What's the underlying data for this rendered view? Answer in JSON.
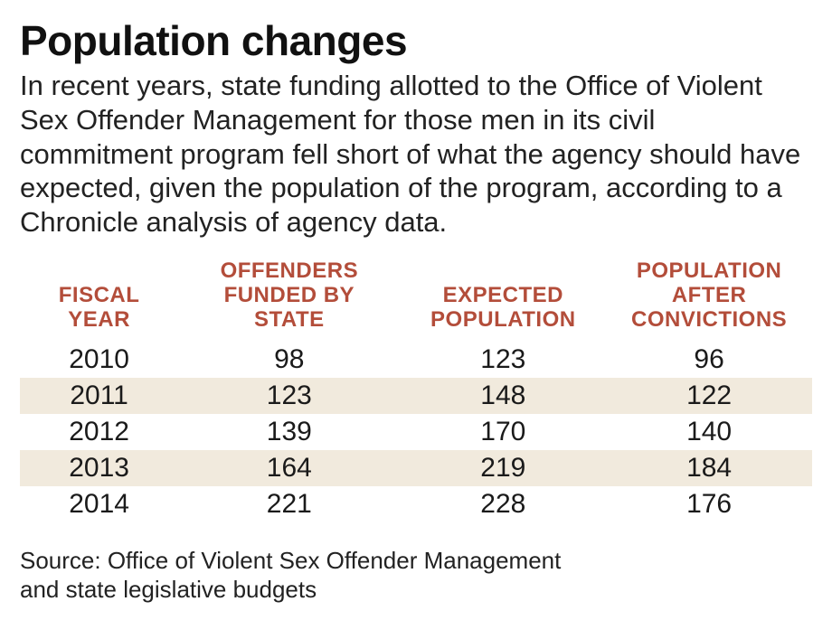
{
  "title": "Population changes",
  "intro": "In recent years, state funding allotted to the Office of Violent Sex Offender Management for those men in its civil commitment program fell short of what the agency should have expected, given the population of the program, according to a Chronicle analysis of agency data.",
  "table": {
    "type": "table",
    "header_color": "#b34d3a",
    "stripe_color": "#f1eadd",
    "background_color": "#ffffff",
    "header_fontsize": 24,
    "cell_fontsize": 30,
    "columns": [
      {
        "label_line1": "FISCAL",
        "label_line2": "YEAR",
        "width_pct": 20
      },
      {
        "label_line1": "OFFENDERS",
        "label_line2": "FUNDED BY",
        "label_line3": "STATE",
        "width_pct": 28
      },
      {
        "label_line1": "EXPECTED",
        "label_line2": "POPULATION",
        "width_pct": 26
      },
      {
        "label_line1": "POPULATION",
        "label_line2": "AFTER",
        "label_line3": "CONVICTIONS",
        "width_pct": 26
      }
    ],
    "rows": [
      {
        "year": "2010",
        "funded": "98",
        "expected": "123",
        "after": "96",
        "stripe": false
      },
      {
        "year": "2011",
        "funded": "123",
        "expected": "148",
        "after": "122",
        "stripe": true
      },
      {
        "year": "2012",
        "funded": "139",
        "expected": "170",
        "after": "140",
        "stripe": false
      },
      {
        "year": "2013",
        "funded": "164",
        "expected": "219",
        "after": "184",
        "stripe": true
      },
      {
        "year": "2014",
        "funded": "221",
        "expected": "228",
        "after": "176",
        "stripe": false
      }
    ]
  },
  "source_line1": "Source: Office of Violent Sex Offender Management",
  "source_line2": "and state legislative budgets"
}
